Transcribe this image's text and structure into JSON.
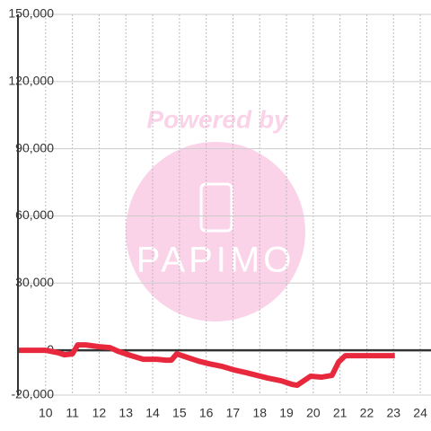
{
  "chart_data": {
    "type": "line",
    "watermark": {
      "line1": "Powered by",
      "line2": "PAPIMO"
    },
    "x": [
      9,
      10,
      10.5,
      10.7,
      11,
      11.2,
      11.5,
      12,
      12.4,
      12.7,
      13.2,
      13.65,
      14.15,
      14.5,
      14.7,
      14.9,
      15.3,
      15.7,
      16.1,
      16.6,
      17.05,
      17.5,
      17.9,
      18.3,
      18.8,
      19.2,
      19.4,
      19.9,
      20.3,
      20.7,
      20.95,
      21.2,
      21.7,
      23.05
    ],
    "series": [
      {
        "color": "#e8283c",
        "values": [
          0,
          0,
          -1200,
          -2000,
          -1600,
          2400,
          2400,
          1600,
          1200,
          -400,
          -2400,
          -4000,
          -4000,
          -4400,
          -4400,
          -1600,
          -3200,
          -4800,
          -6000,
          -7200,
          -8800,
          -10000,
          -11200,
          -12400,
          -13600,
          -15200,
          -15600,
          -11600,
          -12000,
          -11200,
          -5200,
          -2400,
          -2400,
          -2400
        ]
      }
    ],
    "xlim": [
      9,
      24.4
    ],
    "xticks": [
      10,
      11,
      12,
      13,
      14,
      15,
      16,
      17,
      18,
      19,
      20,
      21,
      22,
      23,
      24
    ],
    "ylim": [
      -20000,
      150000
    ],
    "yticks": [
      {
        "value": -20000,
        "label": "-20,000"
      },
      0,
      {
        "value": 30000,
        "label": "30,000"
      },
      {
        "value": 60000,
        "label": "60,000"
      },
      {
        "value": 90000,
        "label": "90,000"
      },
      {
        "value": 120000,
        "label": "120,000"
      },
      {
        "value": 150000,
        "label": "150,000"
      }
    ],
    "grid": true
  }
}
